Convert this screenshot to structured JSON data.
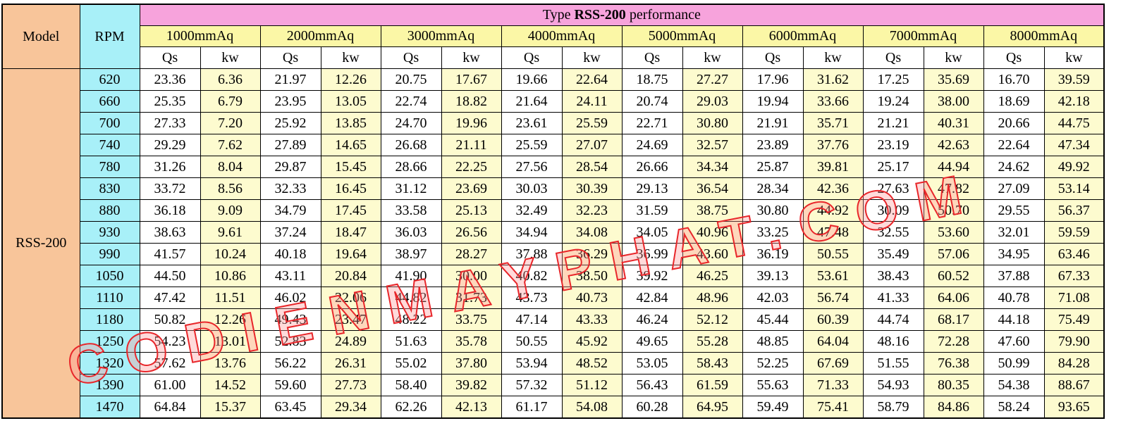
{
  "header": {
    "model": "Model",
    "rpm": "RPM",
    "title": {
      "prefix": "Type",
      "model": "RSS-200",
      "suffix": "performance"
    },
    "pressures": [
      "1000mmAq",
      "2000mmAq",
      "3000mmAq",
      "4000mmAq",
      "5000mmAq",
      "6000mmAq",
      "7000mmAq",
      "8000mmAq"
    ],
    "sub": [
      "Qs",
      "kw"
    ]
  },
  "table": {
    "model": "RSS-200",
    "rows": [
      {
        "rpm": "620",
        "values": [
          "23.36",
          "6.36",
          "21.97",
          "12.26",
          "20.75",
          "17.67",
          "19.66",
          "22.64",
          "18.75",
          "27.27",
          "17.96",
          "31.62",
          "17.25",
          "35.69",
          "16.70",
          "39.59"
        ]
      },
      {
        "rpm": "660",
        "values": [
          "25.35",
          "6.79",
          "23.95",
          "13.05",
          "22.74",
          "18.82",
          "21.64",
          "24.11",
          "20.74",
          "29.03",
          "19.94",
          "33.66",
          "19.24",
          "38.00",
          "18.69",
          "42.18"
        ]
      },
      {
        "rpm": "700",
        "values": [
          "27.33",
          "7.20",
          "25.92",
          "13.85",
          "24.70",
          "19.96",
          "23.61",
          "25.59",
          "22.71",
          "30.80",
          "21.91",
          "35.71",
          "21.21",
          "40.31",
          "20.66",
          "44.75"
        ]
      },
      {
        "rpm": "740",
        "values": [
          "29.29",
          "7.62",
          "27.89",
          "14.65",
          "26.68",
          "21.11",
          "25.59",
          "27.07",
          "24.69",
          "32.57",
          "23.89",
          "37.76",
          "23.19",
          "42.63",
          "22.64",
          "47.34"
        ]
      },
      {
        "rpm": "780",
        "values": [
          "31.26",
          "8.04",
          "29.87",
          "15.45",
          "28.66",
          "22.25",
          "27.56",
          "28.54",
          "26.66",
          "34.34",
          "25.87",
          "39.81",
          "25.17",
          "44.94",
          "24.62",
          "49.92"
        ]
      },
      {
        "rpm": "830",
        "values": [
          "33.72",
          "8.56",
          "32.33",
          "16.45",
          "31.12",
          "23.69",
          "30.03",
          "30.39",
          "29.13",
          "36.54",
          "28.34",
          "42.36",
          "27.63",
          "47.82",
          "27.09",
          "53.14"
        ]
      },
      {
        "rpm": "880",
        "values": [
          "36.18",
          "9.09",
          "34.79",
          "17.45",
          "33.58",
          "25.13",
          "32.49",
          "32.23",
          "31.59",
          "38.75",
          "30.80",
          "44.92",
          "30.09",
          "50.70",
          "29.55",
          "56.37"
        ]
      },
      {
        "rpm": "930",
        "values": [
          "38.63",
          "9.61",
          "37.24",
          "18.47",
          "36.03",
          "26.56",
          "34.94",
          "34.08",
          "34.05",
          "40.96",
          "33.25",
          "47.48",
          "32.55",
          "53.60",
          "32.01",
          "59.59"
        ]
      },
      {
        "rpm": "990",
        "values": [
          "41.57",
          "10.24",
          "40.18",
          "19.64",
          "38.97",
          "28.27",
          "37.88",
          "36.29",
          "36.99",
          "43.60",
          "36.19",
          "50.55",
          "35.49",
          "57.06",
          "34.95",
          "63.46"
        ]
      },
      {
        "rpm": "1050",
        "values": [
          "44.50",
          "10.86",
          "43.11",
          "20.84",
          "41.90",
          "30.00",
          "40.82",
          "38.50",
          "39.92",
          "46.25",
          "39.13",
          "53.61",
          "38.43",
          "60.52",
          "37.88",
          "67.33"
        ]
      },
      {
        "rpm": "1110",
        "values": [
          "47.42",
          "11.51",
          "46.02",
          "22.06",
          "44.82",
          "31.73",
          "43.73",
          "40.73",
          "42.84",
          "48.96",
          "42.03",
          "56.74",
          "41.33",
          "64.06",
          "40.78",
          "71.08"
        ]
      },
      {
        "rpm": "1180",
        "values": [
          "50.82",
          "12.26",
          "49.43",
          "23.47",
          "48.22",
          "33.75",
          "47.14",
          "43.33",
          "46.24",
          "52.12",
          "45.44",
          "60.39",
          "44.74",
          "68.17",
          "44.18",
          "75.49"
        ]
      },
      {
        "rpm": "1250",
        "values": [
          "54.23",
          "13.01",
          "52.83",
          "24.89",
          "51.63",
          "35.78",
          "50.55",
          "45.92",
          "49.65",
          "55.28",
          "48.85",
          "64.04",
          "48.16",
          "72.28",
          "47.60",
          "79.90"
        ]
      },
      {
        "rpm": "1320",
        "values": [
          "57.62",
          "13.76",
          "56.22",
          "26.31",
          "55.02",
          "37.80",
          "53.94",
          "48.52",
          "53.05",
          "58.43",
          "52.25",
          "67.69",
          "51.55",
          "76.38",
          "50.99",
          "84.28"
        ]
      },
      {
        "rpm": "1390",
        "values": [
          "61.00",
          "14.52",
          "59.60",
          "27.73",
          "58.40",
          "39.82",
          "57.32",
          "51.12",
          "56.43",
          "61.59",
          "55.63",
          "71.33",
          "54.93",
          "80.35",
          "54.38",
          "88.67"
        ]
      },
      {
        "rpm": "1470",
        "values": [
          "64.84",
          "15.37",
          "63.45",
          "29.34",
          "62.26",
          "42.13",
          "61.17",
          "54.08",
          "60.28",
          "64.95",
          "59.49",
          "75.41",
          "58.79",
          "84.86",
          "58.24",
          "93.65"
        ]
      }
    ]
  },
  "watermark": "CODIENMAYPHAT.COM"
}
